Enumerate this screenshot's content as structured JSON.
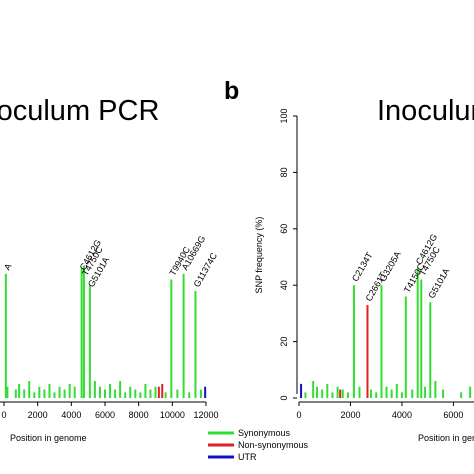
{
  "legend": [
    {
      "label": "Synonymous",
      "color": "#33dd33"
    },
    {
      "label": "Non-synonymous",
      "color": "#dd2222"
    },
    {
      "label": "UTR",
      "color": "#1111cc"
    }
  ],
  "chart_data": [
    {
      "type": "bar",
      "title": "oculum PCR",
      "panel_label": "",
      "xlabel": "Position in genome",
      "ylabel": "",
      "xlim": [
        0,
        12000
      ],
      "ylim": [
        0,
        100
      ],
      "xticks": [
        0,
        2000,
        4000,
        6000,
        8000,
        10000,
        12000
      ],
      "xtick_labels": [
        "0",
        "2000",
        "4000",
        "6000",
        "8000",
        "10000",
        "12000"
      ],
      "annotations": [
        {
          "text": "A",
          "x": 110,
          "y": 44
        },
        {
          "text": "T4750C",
          "x": 4750,
          "y": 42
        },
        {
          "text": "C4612G",
          "x": 4612,
          "y": 44
        },
        {
          "text": "G5101A",
          "x": 5101,
          "y": 38
        },
        {
          "text": "T9940C",
          "x": 9940,
          "y": 42
        },
        {
          "text": "A10669G",
          "x": 10669,
          "y": 44
        },
        {
          "text": "G11374C",
          "x": 11374,
          "y": 38
        }
      ],
      "series": [
        {
          "type": "synonymous",
          "color": "#33dd33",
          "points": [
            {
              "x": 110,
              "y": 44
            },
            {
              "x": 200,
              "y": 4
            },
            {
              "x": 700,
              "y": 3
            },
            {
              "x": 900,
              "y": 5
            },
            {
              "x": 1200,
              "y": 3
            },
            {
              "x": 1500,
              "y": 6
            },
            {
              "x": 1800,
              "y": 2
            },
            {
              "x": 2100,
              "y": 4
            },
            {
              "x": 2400,
              "y": 3
            },
            {
              "x": 2700,
              "y": 5
            },
            {
              "x": 3000,
              "y": 2
            },
            {
              "x": 3300,
              "y": 4
            },
            {
              "x": 3600,
              "y": 3
            },
            {
              "x": 3900,
              "y": 5
            },
            {
              "x": 4200,
              "y": 4
            },
            {
              "x": 4612,
              "y": 46
            },
            {
              "x": 4750,
              "y": 47
            },
            {
              "x": 5101,
              "y": 40
            },
            {
              "x": 5400,
              "y": 6
            },
            {
              "x": 5700,
              "y": 4
            },
            {
              "x": 6000,
              "y": 3
            },
            {
              "x": 6300,
              "y": 5
            },
            {
              "x": 6600,
              "y": 3
            },
            {
              "x": 6900,
              "y": 6
            },
            {
              "x": 7200,
              "y": 2
            },
            {
              "x": 7500,
              "y": 4
            },
            {
              "x": 7800,
              "y": 3
            },
            {
              "x": 8100,
              "y": 2
            },
            {
              "x": 8400,
              "y": 5
            },
            {
              "x": 8700,
              "y": 3
            },
            {
              "x": 9000,
              "y": 4
            },
            {
              "x": 9600,
              "y": 2
            },
            {
              "x": 9940,
              "y": 42
            },
            {
              "x": 10300,
              "y": 3
            },
            {
              "x": 10669,
              "y": 44
            },
            {
              "x": 11000,
              "y": 2
            },
            {
              "x": 11374,
              "y": 38
            },
            {
              "x": 11700,
              "y": 3
            }
          ]
        },
        {
          "type": "non-synonymous",
          "color": "#dd2222",
          "points": [
            {
              "x": 9200,
              "y": 4
            },
            {
              "x": 9400,
              "y": 5
            }
          ]
        },
        {
          "type": "utr",
          "color": "#1111cc",
          "points": [
            {
              "x": 11950,
              "y": 4
            }
          ]
        }
      ]
    },
    {
      "type": "bar",
      "title": "Inoculum",
      "panel_label": "b",
      "xlabel": "Position in genome",
      "ylabel": "SNP frequency (%)",
      "xlim": [
        0,
        6800
      ],
      "ylim": [
        0,
        100
      ],
      "xticks": [
        0,
        2000,
        4000,
        6000
      ],
      "xtick_labels": [
        "0",
        "2000",
        "4000",
        "6000"
      ],
      "yticks": [
        0,
        20,
        40,
        60,
        80,
        100
      ],
      "ytick_labels": [
        "0",
        "20",
        "40",
        "60",
        "80",
        "100"
      ],
      "annotations": [
        {
          "text": "C2134T",
          "x": 2134,
          "y": 40
        },
        {
          "text": "C2661T",
          "x": 2661,
          "y": 33
        },
        {
          "text": "G3205A",
          "x": 3205,
          "y": 40
        },
        {
          "text": "T4150C",
          "x": 4150,
          "y": 36
        },
        {
          "text": "C4612G",
          "x": 4612,
          "y": 46
        },
        {
          "text": "T4750C",
          "x": 4750,
          "y": 42
        },
        {
          "text": "G5101A",
          "x": 5101,
          "y": 34
        }
      ],
      "series": [
        {
          "type": "synonymous",
          "color": "#33dd33",
          "points": [
            {
              "x": 250,
              "y": 2
            },
            {
              "x": 550,
              "y": 6
            },
            {
              "x": 700,
              "y": 4
            },
            {
              "x": 900,
              "y": 3
            },
            {
              "x": 1100,
              "y": 5
            },
            {
              "x": 1300,
              "y": 2
            },
            {
              "x": 1500,
              "y": 4
            },
            {
              "x": 1700,
              "y": 3
            },
            {
              "x": 1900,
              "y": 2
            },
            {
              "x": 2134,
              "y": 40
            },
            {
              "x": 2350,
              "y": 4
            },
            {
              "x": 2800,
              "y": 3
            },
            {
              "x": 3000,
              "y": 2
            },
            {
              "x": 3205,
              "y": 40
            },
            {
              "x": 3400,
              "y": 4
            },
            {
              "x": 3600,
              "y": 3
            },
            {
              "x": 3800,
              "y": 5
            },
            {
              "x": 4000,
              "y": 2
            },
            {
              "x": 4150,
              "y": 36
            },
            {
              "x": 4400,
              "y": 3
            },
            {
              "x": 4612,
              "y": 46
            },
            {
              "x": 4750,
              "y": 42
            },
            {
              "x": 4900,
              "y": 4
            },
            {
              "x": 5101,
              "y": 34
            },
            {
              "x": 5300,
              "y": 6
            },
            {
              "x": 5600,
              "y": 3
            },
            {
              "x": 6300,
              "y": 2
            },
            {
              "x": 6650,
              "y": 4
            }
          ]
        },
        {
          "type": "non-synonymous",
          "color": "#dd2222",
          "points": [
            {
              "x": 2661,
              "y": 33
            },
            {
              "x": 1600,
              "y": 3
            }
          ]
        },
        {
          "type": "utr",
          "color": "#1111cc",
          "points": [
            {
              "x": 80,
              "y": 5
            }
          ]
        }
      ]
    }
  ]
}
